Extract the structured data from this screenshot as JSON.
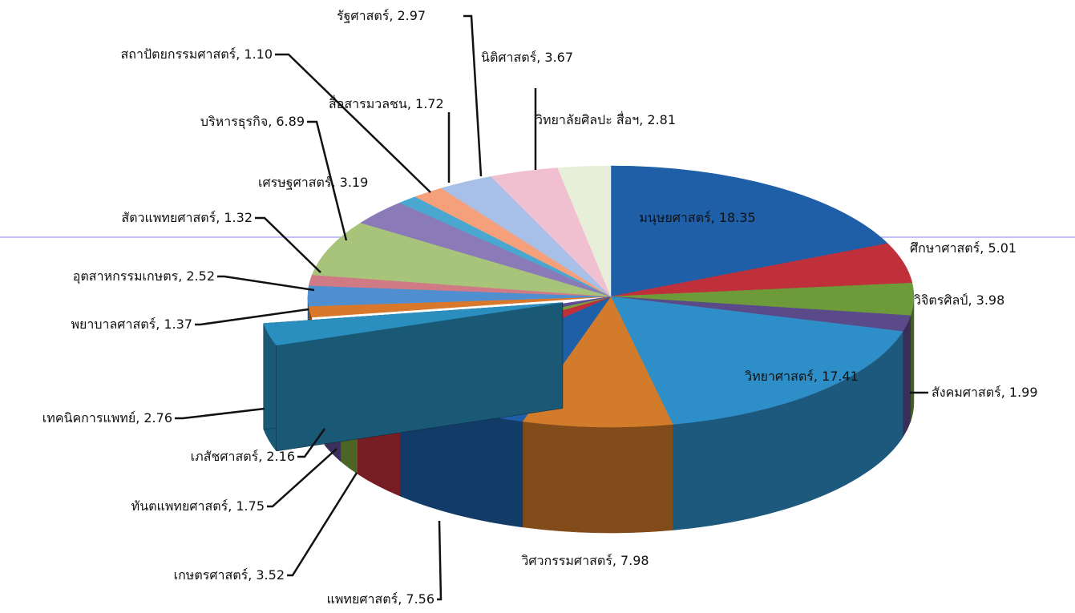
{
  "chart_data": {
    "type": "pie3d",
    "label_separator": ", ",
    "categories": [
      "มนุษยศาสตร์",
      "ศึกษาศาสตร์",
      "วิจิตรศิลป์",
      "สังคมศาสตร์",
      "วิทยาศาสตร์",
      "วิศวกรรมศาสตร์",
      "แพทยศาสตร์",
      "เกษตรศาสตร์",
      "ทันตแพทยศาสตร์",
      "เภสัชศาสตร์",
      "เทคนิคการแพทย์",
      "พยาบาลศาสตร์",
      "อุตสาหกรรมเกษตร",
      "สัตวแพทยศาสตร์",
      "บริหารธุรกิจ",
      "เศรษฐศาสตร์",
      "สถาปัตยกรรมศาสตร์",
      "สื่อสารมวลชน",
      "รัฐศาสตร์",
      "นิติศาสตร์",
      "วิทยาลัยศิลปะ สื่อฯ"
    ],
    "values": [
      18.35,
      5.01,
      3.98,
      1.99,
      17.41,
      7.98,
      7.56,
      3.52,
      1.75,
      2.16,
      2.76,
      1.37,
      2.52,
      1.32,
      6.89,
      3.19,
      1.1,
      1.72,
      2.97,
      3.67,
      2.81
    ],
    "value_labels": [
      "18.35",
      "5.01",
      "3.98",
      "1.99",
      "17.41",
      "7.98",
      "7.56",
      "3.52",
      "1.75",
      "2.16",
      "2.76",
      "1.37",
      "2.52",
      "1.32",
      "6.89",
      "3.19",
      "1.10",
      "1.72",
      "2.97",
      "3.67",
      "2.81"
    ],
    "colors": [
      "#1f5fa8",
      "#c0303a",
      "#6e9b3a",
      "#5a4a8a",
      "#2e8fc8",
      "#d27b2a",
      "#1f5fa8",
      "#c0303a",
      "#7aa33a",
      "#5f4d94",
      "#2a8fbf",
      "#d9782a",
      "#4f8fd0",
      "#d07a86",
      "#a8c47a",
      "#8a7ab8",
      "#4aa7d0",
      "#f5a07a",
      "#a8c0e8",
      "#f0c0d0",
      "#e8efd8"
    ],
    "exploded": [
      10
    ]
  }
}
